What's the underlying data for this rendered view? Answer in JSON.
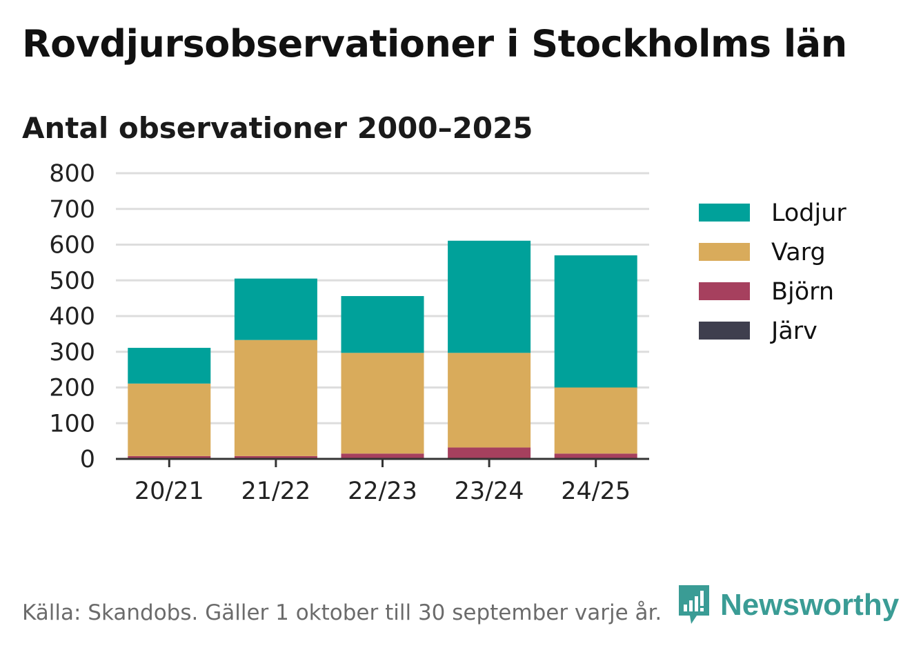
{
  "title": "Rovdjursobservationer i Stockholms län",
  "subtitle": "Antal observationer 2000–2025",
  "footer": "Källa: Skandobs. Gäller 1 oktober till 30 september varje år.",
  "brand": {
    "name": "Newsworthy",
    "icon": "newsworthy-logo-icon"
  },
  "colors": {
    "Lodjur": "#00a19a",
    "Varg": "#d9ab5b",
    "Björn": "#a6405e",
    "Järv": "#3f3f4e",
    "grid": "#dddddd",
    "axis": "#333333"
  },
  "chart_data": {
    "type": "bar",
    "stacked": true,
    "title": "Rovdjursobservationer i Stockholms län",
    "subtitle": "Antal observationer 2000–2025",
    "xlabel": "",
    "ylabel": "",
    "ylim": [
      0,
      800
    ],
    "yticks": [
      0,
      100,
      200,
      300,
      400,
      500,
      600,
      700,
      800
    ],
    "grid": true,
    "legend_position": "right",
    "categories": [
      "20/21",
      "21/22",
      "22/23",
      "23/24",
      "24/25"
    ],
    "series": [
      {
        "name": "Järv",
        "values": [
          0,
          0,
          0,
          0,
          0
        ]
      },
      {
        "name": "Björn",
        "values": [
          8,
          8,
          15,
          32,
          15
        ]
      },
      {
        "name": "Varg",
        "values": [
          203,
          325,
          282,
          265,
          185
        ]
      },
      {
        "name": "Lodjur",
        "values": [
          100,
          172,
          159,
          314,
          370
        ]
      }
    ],
    "legend_order": [
      "Lodjur",
      "Varg",
      "Björn",
      "Järv"
    ]
  }
}
